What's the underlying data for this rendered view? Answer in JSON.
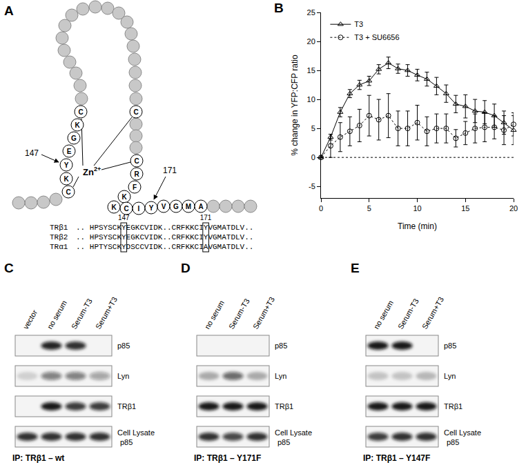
{
  "panel_labels": [
    "A",
    "B",
    "C",
    "D",
    "E"
  ],
  "diagram": {
    "left_strand": [
      "C",
      "K",
      "G",
      "E",
      "Y",
      "K",
      "C"
    ],
    "right_top": "C",
    "right_strand": [
      "C",
      "R",
      "F",
      "K",
      "K",
      "C",
      "I",
      "Y",
      "V",
      "G",
      "M",
      "A"
    ],
    "metal": {
      "symbol": "Zn",
      "charge": "2+"
    },
    "pointers": [
      "147",
      "171"
    ]
  },
  "alignment": {
    "positions": [
      "147",
      "171"
    ],
    "rows": [
      {
        "name": "TRβ1",
        "sequence": ".. HPSYSCKYEGKCVIDK..CRFKKCIYVGMATDLV.."
      },
      {
        "name": "TRβ2",
        "sequence": ".. HPSYSCKYEGKCVIDK..CRFKKCIYVGMATDLV.."
      },
      {
        "name": "TRα1",
        "sequence": ".. HPTYSCKYDSCCVIDK..CRFKKCIAVGMATDLV.."
      }
    ]
  },
  "chart_data": {
    "type": "line",
    "x": [
      0,
      1,
      2,
      3,
      4,
      5,
      6,
      7,
      8,
      9,
      10,
      11,
      12,
      13,
      14,
      15,
      16,
      17,
      18,
      19,
      20
    ],
    "series": [
      {
        "name": "T3",
        "color": "#000000",
        "marker": "triangle-up-open",
        "line_style": "solid",
        "values": [
          0,
          3.5,
          7.8,
          11,
          12.5,
          13.2,
          15.2,
          16.3,
          15.3,
          15,
          14.2,
          13.5,
          12.3,
          11,
          9.2,
          8.8,
          8,
          7.8,
          7.2,
          6,
          4.7
        ],
        "errors": [
          0,
          0.5,
          0.8,
          0.7,
          0.8,
          0.8,
          0.8,
          1,
          0.8,
          1,
          1,
          1.2,
          1.5,
          1.5,
          1.5,
          2,
          2,
          2,
          2,
          2,
          2.5
        ]
      },
      {
        "name": "T3 + SU6656",
        "color": "#000000",
        "marker": "circle-open",
        "line_style": "dotted",
        "values": [
          0,
          2,
          3.5,
          4.5,
          5.5,
          7.2,
          6.5,
          7.2,
          5,
          5,
          6,
          4.5,
          5,
          5,
          3.3,
          4.2,
          5,
          5.2,
          5.2,
          4.7,
          5.7
        ],
        "errors": [
          0,
          2,
          2.5,
          2.5,
          2.8,
          3.5,
          3.5,
          3.8,
          3,
          3,
          3,
          2.5,
          2.5,
          2.5,
          1.5,
          2,
          2.5,
          2.5,
          2,
          2.5,
          2
        ]
      }
    ],
    "xlabel": "Time (min)",
    "ylabel": "% change in YFP:CFP ratio",
    "xlim": [
      0,
      20
    ],
    "ylim": [
      -7,
      25
    ],
    "xticks": [
      0,
      5,
      10,
      15,
      20
    ],
    "yticks": [
      -5,
      0,
      5,
      10,
      15,
      20,
      25
    ],
    "legend": "top-left",
    "grid": false,
    "reference_lines": [
      {
        "y": 0,
        "line_style": "dotted"
      }
    ]
  },
  "blots": [
    {
      "lanes": [
        "vector",
        "no serum",
        "Serum-T3",
        "Serum+T3"
      ],
      "rows": [
        {
          "label": "p85",
          "bands": [
            0,
            0.9,
            0.85,
            0
          ]
        },
        {
          "label": "Lyn",
          "bands": [
            0.15,
            0.5,
            0.5,
            0.35
          ]
        },
        {
          "label": "TRβ1",
          "bands": [
            0,
            0.95,
            0.8,
            0.8
          ]
        },
        {
          "label": [
            "Cell Lysate",
            "p85"
          ],
          "bands": [
            0.85,
            0.85,
            0.85,
            0.85
          ]
        }
      ],
      "caption": "IP: TRβ1 – wt"
    },
    {
      "lanes": [
        "no serum",
        "Serum-T3",
        "Serum+T3"
      ],
      "rows": [
        {
          "label": "p85",
          "bands": [
            0,
            0,
            0
          ]
        },
        {
          "label": "Lyn",
          "bands": [
            0.3,
            0.6,
            0.3
          ]
        },
        {
          "label": "TRβ1",
          "bands": [
            0.95,
            0.95,
            0.95
          ]
        },
        {
          "label": [
            "Cell Lysate",
            "p85"
          ],
          "bands": [
            0.85,
            0.75,
            0.85
          ]
        }
      ],
      "caption": "IP: TRβ1 – Y171F"
    },
    {
      "lanes": [
        "no serum",
        "Serum-T3",
        "Serum+T3"
      ],
      "rows": [
        {
          "label": "p85",
          "bands": [
            0.95,
            0.95,
            0
          ]
        },
        {
          "label": "Lyn",
          "bands": [
            0.2,
            0.2,
            0.25
          ]
        },
        {
          "label": "TRβ1",
          "bands": [
            0.95,
            0.95,
            0.95
          ]
        },
        {
          "label": [
            "Cell Lysate",
            "p85"
          ],
          "bands": [
            0.8,
            0.85,
            0.85
          ]
        }
      ],
      "caption": "IP: TRβ1 – Y147F"
    }
  ]
}
